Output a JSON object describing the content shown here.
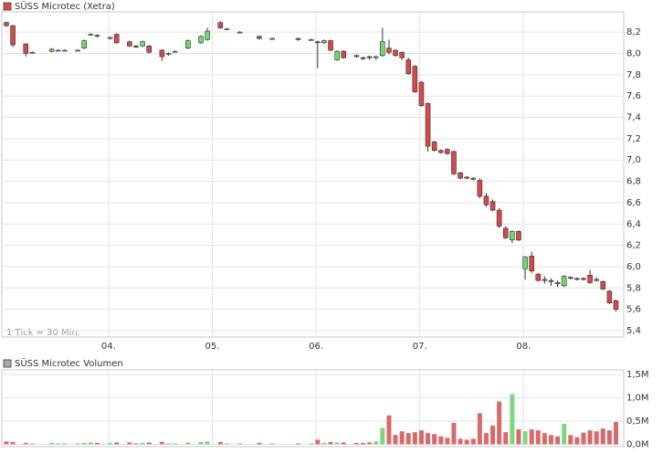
{
  "chart_data": [
    {
      "type": "candlestick",
      "title": "SÜSS Microtec (Xetra)",
      "annotation": "1 Tick = 30 Min.",
      "up_color": "#6fd86f",
      "down_color": "#d44a4a",
      "grid": true,
      "x": [
        0,
        1,
        3,
        4,
        7,
        8,
        9,
        11,
        12,
        13,
        14,
        16,
        17,
        19,
        20,
        21,
        22,
        24,
        25,
        26,
        28,
        30,
        31,
        33,
        34,
        36,
        39,
        41,
        45,
        47,
        48,
        49,
        50,
        51,
        52,
        54,
        55,
        56,
        57,
        58,
        59,
        60,
        61,
        62,
        63,
        64,
        65,
        66,
        67,
        68,
        69,
        70,
        71,
        72,
        73,
        74,
        75,
        76,
        77,
        78,
        79,
        80,
        81,
        82,
        83,
        84,
        85,
        86,
        87,
        88,
        89,
        90,
        91,
        92,
        93,
        94
      ],
      "open": [
        8.29,
        8.26,
        8.09,
        8.01,
        8.02,
        8.03,
        8.03,
        8.03,
        8.05,
        8.18,
        8.17,
        8.14,
        8.18,
        8.11,
        8.07,
        8.07,
        8.07,
        8.03,
        8.0,
        8.02,
        8.05,
        8.1,
        8.13,
        8.29,
        8.23,
        8.2,
        8.16,
        8.14,
        8.14,
        8.13,
        8.11,
        8.1,
        8.12,
        7.94,
        8.02,
        7.98,
        7.96,
        7.97,
        7.96,
        7.98,
        8.05,
        8.03,
        8.01,
        7.94,
        7.88,
        7.73,
        7.53,
        7.17,
        7.09,
        7.1,
        7.08,
        6.88,
        6.84,
        6.83,
        6.81,
        6.66,
        6.61,
        6.53,
        6.36,
        6.25,
        6.33,
        5.98,
        6.1,
        5.93,
        5.88,
        5.87,
        5.85,
        5.82,
        5.9,
        5.89,
        5.89,
        5.92,
        5.88,
        5.86,
        5.77,
        5.68
      ],
      "high": [
        8.3,
        8.27,
        8.09,
        8.02,
        8.05,
        8.04,
        8.04,
        8.04,
        8.13,
        8.19,
        8.18,
        8.16,
        8.19,
        8.12,
        8.08,
        8.12,
        8.08,
        8.04,
        8.01,
        8.03,
        8.13,
        8.17,
        8.24,
        8.3,
        8.24,
        8.21,
        8.17,
        8.15,
        8.15,
        8.14,
        8.12,
        8.13,
        8.13,
        8.03,
        8.03,
        7.99,
        7.97,
        7.98,
        7.98,
        8.24,
        8.13,
        8.04,
        8.02,
        7.96,
        7.89,
        7.74,
        7.54,
        7.18,
        7.1,
        7.11,
        7.09,
        6.89,
        6.85,
        6.84,
        6.83,
        6.69,
        6.63,
        6.55,
        6.38,
        6.34,
        6.34,
        6.1,
        6.14,
        5.94,
        5.91,
        5.89,
        5.87,
        5.92,
        5.91,
        5.9,
        5.9,
        5.97,
        5.9,
        5.87,
        5.78,
        5.69
      ],
      "low": [
        8.25,
        8.06,
        7.97,
        8.0,
        8.01,
        8.02,
        8.02,
        8.02,
        8.04,
        8.17,
        8.15,
        8.13,
        8.09,
        8.06,
        8.05,
        8.06,
        8.0,
        7.93,
        7.98,
        8.01,
        8.04,
        8.09,
        8.12,
        8.23,
        8.22,
        8.19,
        8.13,
        8.13,
        8.12,
        8.12,
        7.86,
        8.09,
        8.02,
        7.93,
        7.95,
        7.96,
        7.94,
        7.94,
        7.94,
        7.97,
        7.99,
        7.97,
        7.94,
        7.8,
        7.63,
        7.5,
        7.08,
        7.08,
        7.06,
        7.05,
        6.86,
        6.82,
        6.82,
        6.81,
        6.64,
        6.56,
        6.52,
        6.36,
        6.26,
        6.22,
        6.24,
        5.88,
        5.94,
        5.86,
        5.84,
        5.82,
        5.81,
        5.81,
        5.88,
        5.87,
        5.87,
        5.84,
        5.86,
        5.78,
        5.65,
        5.58
      ],
      "close": [
        8.26,
        8.08,
        8.0,
        8.01,
        8.04,
        8.03,
        8.03,
        8.03,
        8.12,
        8.18,
        8.16,
        8.15,
        8.1,
        8.07,
        8.06,
        8.11,
        8.01,
        7.97,
        8.0,
        8.02,
        8.12,
        8.16,
        8.21,
        8.24,
        8.23,
        8.2,
        8.14,
        8.14,
        8.13,
        8.13,
        8.1,
        8.12,
        8.03,
        8.02,
        7.96,
        7.97,
        7.95,
        7.96,
        7.97,
        8.11,
        8.01,
        7.98,
        7.96,
        7.81,
        7.64,
        7.51,
        7.13,
        7.09,
        7.07,
        7.06,
        6.87,
        6.83,
        6.83,
        6.82,
        6.66,
        6.58,
        6.53,
        6.38,
        6.27,
        6.33,
        6.25,
        6.09,
        5.96,
        5.87,
        5.87,
        5.86,
        5.84,
        5.91,
        5.89,
        5.88,
        5.88,
        5.85,
        5.87,
        5.79,
        5.66,
        5.6
      ],
      "xlim": [
        -0.7,
        95.2
      ],
      "xticks": [
        {
          "value": 15.75,
          "label": "04."
        },
        {
          "value": 31.75,
          "label": "05."
        },
        {
          "value": 47.75,
          "label": "06."
        },
        {
          "value": 63.75,
          "label": "07."
        },
        {
          "value": 79.75,
          "label": "08."
        }
      ],
      "ylim": [
        5.34,
        8.39
      ],
      "yticks": [
        {
          "value": 5.4,
          "label": "5,4"
        },
        {
          "value": 5.6,
          "label": "5,6"
        },
        {
          "value": 5.8,
          "label": "5,8"
        },
        {
          "value": 6.0,
          "label": "6,0"
        },
        {
          "value": 6.2,
          "label": "6,2"
        },
        {
          "value": 6.4,
          "label": "6,4"
        },
        {
          "value": 6.6,
          "label": "6,6"
        },
        {
          "value": 6.8,
          "label": "6,8"
        },
        {
          "value": 7.0,
          "label": "7,0"
        },
        {
          "value": 7.2,
          "label": "7,2"
        },
        {
          "value": 7.4,
          "label": "7,4"
        },
        {
          "value": 7.6,
          "label": "7,6"
        },
        {
          "value": 7.8,
          "label": "7,8"
        },
        {
          "value": 8.0,
          "label": "8,0"
        },
        {
          "value": 8.2,
          "label": "8,2"
        }
      ]
    },
    {
      "type": "bar",
      "title": "SÜSS Microtec Volumen",
      "up_color": "#7ed67e",
      "down_color": "#d86a6a",
      "grid": true,
      "values": [
        0.06,
        0.05,
        0.03,
        0.02,
        0.03,
        0.02,
        0.02,
        0.02,
        0.03,
        0.04,
        0.03,
        0.03,
        0.04,
        0.04,
        0.02,
        0.03,
        0.04,
        0.05,
        0.02,
        0.02,
        0.04,
        0.05,
        0.06,
        0.05,
        0.02,
        0.02,
        0.03,
        0.02,
        0.02,
        0.02,
        0.1,
        0.03,
        0.05,
        0.04,
        0.04,
        0.03,
        0.03,
        0.04,
        0.06,
        0.35,
        0.62,
        0.2,
        0.28,
        0.24,
        0.26,
        0.3,
        0.24,
        0.22,
        0.17,
        0.14,
        0.46,
        0.12,
        0.1,
        0.12,
        0.67,
        0.24,
        0.4,
        0.92,
        0.26,
        1.08,
        0.32,
        0.28,
        0.32,
        0.3,
        0.24,
        0.2,
        0.17,
        0.44,
        0.2,
        0.15,
        0.25,
        0.3,
        0.28,
        0.34,
        0.3,
        0.48
      ],
      "ylim": [
        -0.05,
        1.6
      ],
      "yticks": [
        {
          "value": 0,
          "label": "0,0M"
        },
        {
          "value": 0.5,
          "label": "0,5M"
        },
        {
          "value": 1.0,
          "label": "1,0M"
        },
        {
          "value": 1.5,
          "label": "1,5M"
        }
      ]
    }
  ]
}
